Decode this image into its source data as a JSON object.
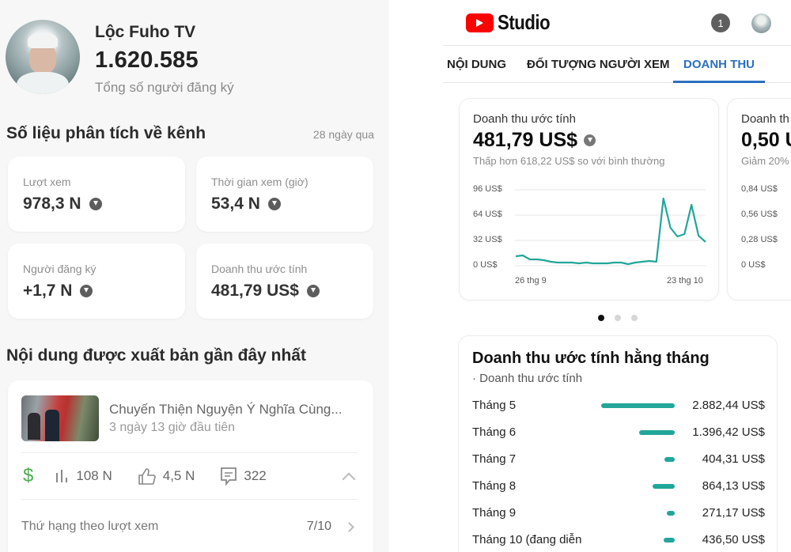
{
  "left_panel": {
    "channel": {
      "name": "Lộc Fuho TV",
      "subscribers": "1.620.585",
      "subscribers_label": "Tổng số người đăng ký"
    },
    "analytics": {
      "title": "Số liệu phân tích về kênh",
      "period": "28 ngày qua",
      "cards": [
        {
          "label": "Lượt xem",
          "value": "978,3 N",
          "trend_icon": "arrow-down-icon"
        },
        {
          "label": "Thời gian xem (giờ)",
          "value": "53,4 N",
          "trend_icon": "arrow-down-icon"
        },
        {
          "label": "Người đăng ký",
          "value": "+1,7 N",
          "trend_icon": "arrow-down-icon"
        },
        {
          "label": "Doanh thu ước tính",
          "value": "481,79 US$",
          "trend_icon": "arrow-down-icon"
        }
      ]
    },
    "latest_content": {
      "title": "Nội dung được xuất bản gần đây nhất",
      "video_title": "Chuyến Thiện Nguyện Ý Nghĩa Cùng...",
      "video_sub": "3 ngày 13 giờ đầu tiên",
      "monetized_icon": "$",
      "views": "108 N",
      "likes": "4,5 N",
      "comments": "322",
      "rank_label": "Thứ hạng theo lượt xem",
      "rank_value": "7/10"
    }
  },
  "right_panel": {
    "app": {
      "logo_text": "Studio",
      "notification_count": "1"
    },
    "tabs": [
      {
        "label": "NỘI DUNG",
        "active": false
      },
      {
        "label": "ĐỐI TƯỢNG NGƯỜI XEM",
        "active": false
      },
      {
        "label": "DOANH THU",
        "active": true
      }
    ],
    "revenue_card": {
      "label": "Doanh thu ước tính",
      "value": "481,79 US$",
      "compare": "Thấp hơn 618,22 US$ so với bình thường",
      "y_ticks": [
        "96 US$",
        "64 US$",
        "32 US$",
        "0 US$"
      ],
      "x_ticks": [
        "26 thg 9",
        "23 thg 10"
      ]
    },
    "rpm_card": {
      "label": "Doanh th",
      "value": "0,50 U",
      "compare": "Giảm 20%",
      "y_ticks": [
        "0,84 US$",
        "0,56 US$",
        "0,28 US$",
        "0 US$"
      ]
    },
    "carousel": {
      "count": 3,
      "active_index": 0
    },
    "monthly": {
      "title": "Doanh thu ước tính hằng tháng",
      "subtitle": "· Doanh thu ước tính",
      "rows": [
        {
          "label": "Tháng 5",
          "value": "2.882,44 US$",
          "amount": 2882.44
        },
        {
          "label": "Tháng 6",
          "value": "1.396,42 US$",
          "amount": 1396.42
        },
        {
          "label": "Tháng 7",
          "value": "404,31 US$",
          "amount": 404.31
        },
        {
          "label": "Tháng 8",
          "value": "864,13 US$",
          "amount": 864.13
        },
        {
          "label": "Tháng 9",
          "value": "271,17 US$",
          "amount": 271.17
        },
        {
          "label": "Tháng 10 (đang diễn",
          "value": "436,50 US$",
          "amount": 436.5
        }
      ]
    },
    "colors": {
      "accent": "#2c6fbf",
      "chart_line": "#22a699",
      "yt_red": "#ff0000"
    }
  },
  "chart_data": [
    {
      "type": "line",
      "title": "Doanh thu ước tính",
      "xlabel": "",
      "ylabel": "US$",
      "x_tick_labels": [
        "26 thg 9",
        "23 thg 10"
      ],
      "y_tick_labels": [
        "0 US$",
        "32 US$",
        "64 US$",
        "96 US$"
      ],
      "ylim": [
        0,
        96
      ],
      "grid": true,
      "series": [
        {
          "name": "Doanh thu ước tính",
          "values": [
            12,
            13,
            8,
            8,
            7,
            5,
            4,
            4,
            4,
            3,
            4,
            3,
            3,
            3,
            4,
            4,
            2,
            4,
            5,
            6,
            5,
            85,
            48,
            37,
            40,
            77,
            38,
            30
          ]
        }
      ]
    },
    {
      "type": "bar",
      "title": "Doanh thu ước tính hằng tháng",
      "categories": [
        "Tháng 5",
        "Tháng 6",
        "Tháng 7",
        "Tháng 8",
        "Tháng 9",
        "Tháng 10 (đang diễn"
      ],
      "values": [
        2882.44,
        1396.42,
        404.31,
        864.13,
        271.17,
        436.5
      ],
      "xlabel": "",
      "ylabel": "US$"
    }
  ]
}
